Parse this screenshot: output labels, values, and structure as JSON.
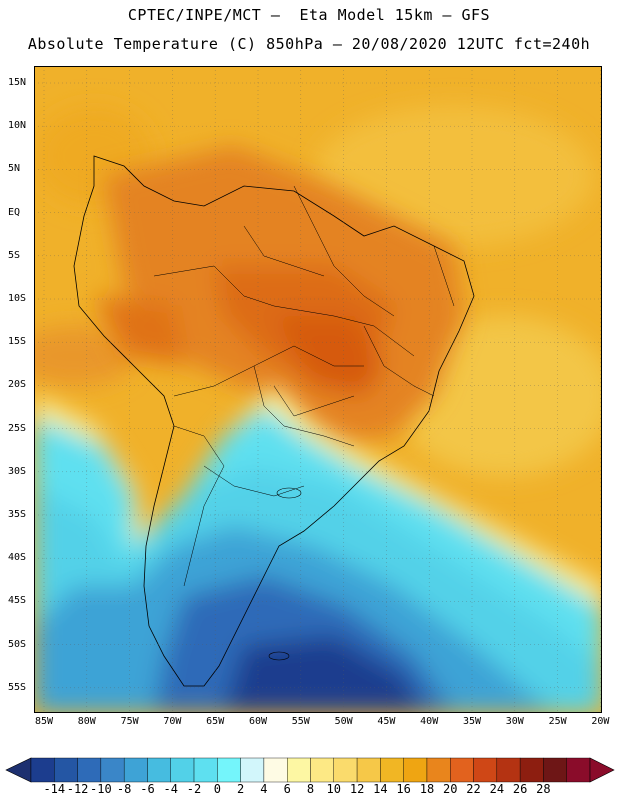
{
  "header": {
    "line1": "CPTEC/INPE/MCT –  Eta Model 15km – GFS",
    "line2": "Absolute Temperature (C) 850hPa – 20/08/2020 12UTC fct=240h"
  },
  "map": {
    "region": "South America",
    "lat_labels": [
      "15N",
      "10N",
      "5N",
      "EQ",
      "5S",
      "10S",
      "15S",
      "20S",
      "25S",
      "30S",
      "35S",
      "40S",
      "45S",
      "50S",
      "55S"
    ],
    "lon_labels": [
      "85W",
      "80W",
      "75W",
      "70W",
      "65W",
      "60W",
      "55W",
      "50W",
      "45W",
      "40W",
      "35W",
      "30W",
      "25W",
      "20W"
    ],
    "grid": "dotted"
  },
  "colorbar": {
    "labels": [
      "-14",
      "-12",
      "-10",
      "-8",
      "-6",
      "-4",
      "-2",
      "0",
      "2",
      "4",
      "6",
      "8",
      "10",
      "12",
      "14",
      "16",
      "18",
      "20",
      "22",
      "24",
      "26",
      "28"
    ],
    "colors": [
      "#1c3d8e",
      "#2456a4",
      "#2e6bb8",
      "#3a86c8",
      "#3ea3d6",
      "#46bce0",
      "#52d1e8",
      "#5ee0f0",
      "#74f5fb",
      "#d2f6fb",
      "#fefbe4",
      "#fdf7a3",
      "#fde985",
      "#fadb6c",
      "#f6c848",
      "#f1b624",
      "#efa512",
      "#e9851c",
      "#e2621e",
      "#cf4716",
      "#b43312",
      "#8d1e10",
      "#6e1616",
      "#8a0c2a"
    ],
    "low_color": "#1d3070",
    "high_color": "#8a0c2a"
  },
  "colors": {
    "ocean_warm": "#f0b12a",
    "land_hot": "#e07a20",
    "land_hottest": "#d85c10",
    "cold_deep": "#1c3d8e",
    "cyan": "#52d1e8"
  }
}
